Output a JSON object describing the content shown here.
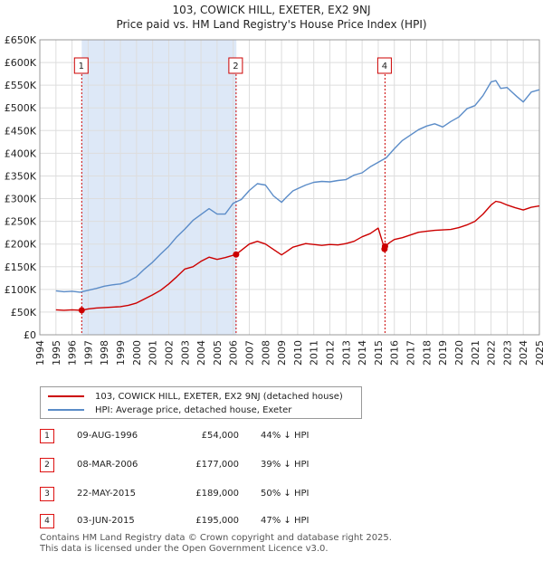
{
  "header": {
    "title": "103, COWICK HILL, EXETER, EX2 9NJ",
    "subtitle": "Price paid vs. HM Land Registry's House Price Index (HPI)"
  },
  "colors": {
    "price_paid": "#cc0000",
    "hpi": "#5b8cc8",
    "shade": "#dde8f7",
    "grid": "#dddddd",
    "marker_line": "#cc0000"
  },
  "chart_data": {
    "type": "line",
    "title": "103, COWICK HILL, EXETER, EX2 9NJ",
    "subtitle": "Price paid vs. HM Land Registry's House Price Index (HPI)",
    "xlim": [
      1994,
      2025
    ],
    "ylim": [
      0,
      650000
    ],
    "x_ticks": [
      "1994",
      "1995",
      "1996",
      "1997",
      "1998",
      "1999",
      "2000",
      "2001",
      "2002",
      "2003",
      "2004",
      "2005",
      "2006",
      "2007",
      "2008",
      "2009",
      "2010",
      "2011",
      "2012",
      "2013",
      "2014",
      "2015",
      "2016",
      "2017",
      "2018",
      "2019",
      "2020",
      "2021",
      "2022",
      "2023",
      "2024",
      "2025"
    ],
    "y_ticks": [
      {
        "value": 0,
        "label": "£0"
      },
      {
        "value": 50000,
        "label": "£50K"
      },
      {
        "value": 100000,
        "label": "£100K"
      },
      {
        "value": 150000,
        "label": "£150K"
      },
      {
        "value": 200000,
        "label": "£200K"
      },
      {
        "value": 250000,
        "label": "£250K"
      },
      {
        "value": 300000,
        "label": "£300K"
      },
      {
        "value": 350000,
        "label": "£350K"
      },
      {
        "value": 400000,
        "label": "£400K"
      },
      {
        "value": 450000,
        "label": "£450K"
      },
      {
        "value": 500000,
        "label": "£500K"
      },
      {
        "value": 550000,
        "label": "£550K"
      },
      {
        "value": 600000,
        "label": "£600K"
      },
      {
        "value": 650000,
        "label": "£650K"
      }
    ],
    "shaded_range": [
      1996.6,
      2006.2
    ],
    "series": [
      {
        "name": "103, COWICK HILL, EXETER, EX2 9NJ (detached house)",
        "color": "#cc0000",
        "x": [
          1995,
          1995.5,
          1996,
          1996.6,
          1997,
          1997.5,
          1998,
          1998.5,
          1999,
          1999.5,
          2000,
          2000.5,
          2001,
          2001.5,
          2002,
          2002.5,
          2003,
          2003.5,
          2004,
          2004.5,
          2005,
          2005.5,
          2006.18,
          2006.5,
          2007,
          2007.5,
          2008,
          2008.5,
          2009,
          2009.3,
          2009.7,
          2010,
          2010.5,
          2011,
          2011.5,
          2012,
          2012.5,
          2013,
          2013.5,
          2014,
          2014.5,
          2015,
          2015.3,
          2015.39,
          2015.42,
          2015.7,
          2016,
          2016.5,
          2017,
          2017.5,
          2018,
          2018.5,
          2019,
          2019.5,
          2020,
          2020.5,
          2021,
          2021.5,
          2022,
          2022.3,
          2022.6,
          2023,
          2023.5,
          2024,
          2024.5,
          2025
        ],
        "values": [
          55000,
          54000,
          55000,
          54000,
          57000,
          59000,
          60000,
          61000,
          62000,
          65000,
          70000,
          79000,
          88000,
          98000,
          112000,
          128000,
          145000,
          150000,
          162000,
          171000,
          166000,
          170000,
          177000,
          186000,
          200000,
          206000,
          200000,
          188000,
          176000,
          183000,
          193000,
          196000,
          201000,
          199000,
          197000,
          199000,
          198000,
          201000,
          206000,
          216000,
          223000,
          235000,
          200000,
          189000,
          195000,
          203000,
          210000,
          214000,
          220000,
          226000,
          228000,
          230000,
          231000,
          232000,
          236000,
          242000,
          250000,
          266000,
          286000,
          294000,
          292000,
          286000,
          280000,
          275000,
          281000,
          284000
        ]
      },
      {
        "name": "HPI: Average price, detached house, Exeter",
        "color": "#5b8cc8",
        "x": [
          1995,
          1995.5,
          1996,
          1996.5,
          1997,
          1997.5,
          1998,
          1998.5,
          1999,
          1999.5,
          2000,
          2000.5,
          2001,
          2001.5,
          2002,
          2002.5,
          2003,
          2003.5,
          2004,
          2004.5,
          2005,
          2005.5,
          2006,
          2006.5,
          2007,
          2007.5,
          2008,
          2008.5,
          2009,
          2009.3,
          2009.7,
          2010,
          2010.5,
          2011,
          2011.5,
          2012,
          2012.5,
          2013,
          2013.5,
          2014,
          2014.5,
          2015,
          2015.5,
          2016,
          2016.5,
          2017,
          2017.5,
          2018,
          2018.5,
          2019,
          2019.5,
          2020,
          2020.5,
          2021,
          2021.5,
          2022,
          2022.3,
          2022.6,
          2023,
          2023.3,
          2023.6,
          2024,
          2024.5,
          2025
        ],
        "values": [
          97000,
          95000,
          96000,
          94000,
          98000,
          102000,
          107000,
          110000,
          112000,
          118000,
          128000,
          145000,
          160000,
          178000,
          195000,
          216000,
          233000,
          252000,
          265000,
          278000,
          266000,
          266000,
          290000,
          298000,
          318000,
          333000,
          330000,
          306000,
          292000,
          303000,
          317000,
          322000,
          330000,
          336000,
          338000,
          337000,
          340000,
          342000,
          352000,
          357000,
          370000,
          380000,
          390000,
          410000,
          428000,
          440000,
          452000,
          460000,
          465000,
          458000,
          470000,
          480000,
          498000,
          505000,
          527000,
          557000,
          560000,
          543000,
          545000,
          535000,
          525000,
          513000,
          535000,
          540000
        ]
      }
    ],
    "sale_markers": [
      {
        "label": "1",
        "x": 1996.6,
        "y": 54000
      },
      {
        "label": "2",
        "x": 2006.18,
        "y": 177000
      },
      {
        "label": "3",
        "x": 2015.39,
        "y": 189000
      },
      {
        "label": "4",
        "x": 2015.42,
        "y": 195000
      }
    ],
    "marker_boxes": [
      {
        "label": "1",
        "x": 1996.6
      },
      {
        "label": "2",
        "x": 2006.18
      },
      {
        "label": "4",
        "x": 2015.42
      }
    ]
  },
  "legend": {
    "items": [
      {
        "label": "103, COWICK HILL, EXETER, EX2 9NJ (detached house)",
        "color": "#cc0000"
      },
      {
        "label": "HPI: Average price, detached house, Exeter",
        "color": "#5b8cc8"
      }
    ]
  },
  "sales": [
    {
      "num": "1",
      "date": "09-AUG-1996",
      "price": "£54,000",
      "hpi": "44% ↓ HPI"
    },
    {
      "num": "2",
      "date": "08-MAR-2006",
      "price": "£177,000",
      "hpi": "39% ↓ HPI"
    },
    {
      "num": "3",
      "date": "22-MAY-2015",
      "price": "£189,000",
      "hpi": "50% ↓ HPI"
    },
    {
      "num": "4",
      "date": "03-JUN-2015",
      "price": "£195,000",
      "hpi": "47% ↓ HPI"
    }
  ],
  "footer": {
    "line1": "Contains HM Land Registry data © Crown copyright and database right 2025.",
    "line2": "This data is licensed under the Open Government Licence v3.0."
  }
}
